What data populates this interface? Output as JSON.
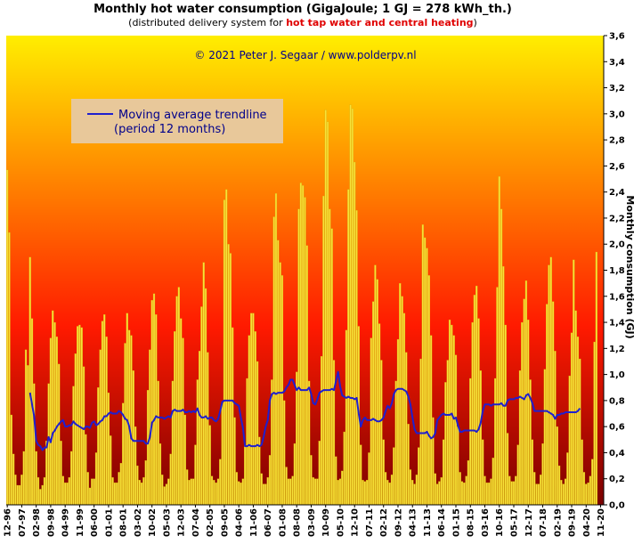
{
  "chart_data": {
    "type": "bar",
    "title": "Monthly hot water consumption (GigaJoule; 1 GJ = 278 kWh_th.)",
    "subtitle_prefix": "(distributed delivery system for ",
    "subtitle_highlight": "hot tap water and central heating",
    "subtitle_suffix": ")",
    "copyright": "© 2021 Peter J. Segaar / www.polderpv.nl",
    "ylabel": "Monthly consumption (GJ)",
    "ylim": [
      0,
      3.6
    ],
    "ytick_step": 0.2,
    "ytick_labels": [
      "0,0",
      "0,2",
      "0,4",
      "0,6",
      "0,8",
      "1,0",
      "1,2",
      "1,4",
      "1,6",
      "1,8",
      "2,0",
      "2,2",
      "2,4",
      "2,6",
      "2,8",
      "3,0",
      "3,2",
      "3,4",
      "3,6"
    ],
    "x_start": "1996-12",
    "x_tick_labels": [
      "12-96",
      "07-97",
      "02-98",
      "09-98",
      "04-99",
      "11-99",
      "06-00",
      "01-01",
      "08-01",
      "03-02",
      "10-02",
      "05-03",
      "12-03",
      "07-04",
      "02-05",
      "09-05",
      "04-06",
      "11-06",
      "06-07",
      "01-08",
      "08-08",
      "03-09",
      "10-09",
      "05-10",
      "12-10",
      "07-11",
      "02-12",
      "09-12",
      "04-13",
      "11-13",
      "06-14",
      "01-15",
      "08-15",
      "03-16",
      "10-16",
      "05-17",
      "12-17",
      "07-18",
      "02-19",
      "09-19",
      "04-20",
      "11-20"
    ],
    "months": 289,
    "legend": {
      "series_label": "Moving average trendline",
      "series_note": "(period 12 months)",
      "position": "top-left"
    },
    "colors": {
      "bars": "#f7e23a",
      "bar_edge": "#d4a800",
      "trendline": "#1f1fcf",
      "legend_bg": "#e8c89a",
      "gradient_top": "#ffee00",
      "gradient_mid": "#ff1a00",
      "gradient_bottom": "#7a0000",
      "title_highlight": "#e00000"
    },
    "series": [
      {
        "name": "Monthly consumption",
        "values": [
          2.57,
          2.09,
          0.69,
          0.39,
          0.23,
          0.15,
          0.15,
          0.23,
          0.41,
          1.19,
          1.07,
          1.9,
          1.43,
          0.93,
          0.41,
          0.21,
          0.12,
          0.15,
          0.21,
          0.49,
          0.93,
          1.28,
          1.49,
          1.4,
          1.29,
          1.08,
          0.49,
          0.22,
          0.17,
          0.17,
          0.21,
          0.41,
          0.91,
          1.16,
          1.37,
          1.38,
          1.36,
          1.06,
          0.54,
          0.25,
          0.13,
          0.2,
          0.2,
          0.4,
          0.9,
          1.19,
          1.41,
          1.46,
          1.29,
          0.86,
          0.53,
          0.21,
          0.17,
          0.17,
          0.25,
          0.32,
          0.78,
          1.24,
          1.47,
          1.34,
          1.3,
          1.03,
          0.6,
          0.3,
          0.19,
          0.17,
          0.21,
          0.34,
          0.88,
          1.19,
          1.57,
          1.62,
          1.46,
          0.95,
          0.47,
          0.23,
          0.14,
          0.16,
          0.2,
          0.39,
          0.95,
          1.33,
          1.6,
          1.67,
          1.43,
          1.28,
          0.69,
          0.27,
          0.19,
          0.2,
          0.2,
          0.46,
          0.96,
          1.18,
          1.52,
          1.86,
          1.66,
          1.17,
          0.61,
          0.22,
          0.19,
          0.17,
          0.2,
          0.35,
          0.79,
          2.34,
          2.42,
          2.0,
          1.93,
          1.36,
          0.67,
          0.25,
          0.18,
          0.17,
          0.2,
          0.46,
          0.97,
          1.3,
          1.47,
          1.47,
          1.33,
          1.1,
          0.52,
          0.24,
          0.16,
          0.16,
          0.21,
          0.38,
          0.96,
          2.21,
          2.39,
          2.03,
          1.86,
          1.76,
          0.8,
          0.29,
          0.2,
          0.2,
          0.22,
          0.47,
          1.02,
          2.27,
          2.47,
          2.45,
          2.36,
          1.99,
          0.95,
          0.38,
          0.21,
          0.2,
          0.2,
          0.49,
          1.14,
          2.37,
          3.03,
          2.94,
          2.27,
          2.12,
          1.11,
          0.37,
          0.19,
          0.2,
          0.26,
          0.56,
          1.34,
          2.42,
          3.07,
          3.04,
          2.63,
          2.26,
          1.37,
          0.46,
          0.19,
          0.18,
          0.19,
          0.4,
          1.28,
          1.56,
          1.84,
          1.73,
          1.39,
          1.11,
          0.5,
          0.25,
          0.19,
          0.17,
          0.23,
          0.44,
          0.95,
          1.27,
          1.7,
          1.6,
          1.47,
          1.17,
          0.62,
          0.27,
          0.19,
          0.16,
          0.23,
          0.44,
          1.12,
          2.15,
          2.05,
          1.97,
          1.76,
          1.3,
          0.67,
          0.24,
          0.16,
          0.18,
          0.21,
          0.5,
          0.94,
          1.11,
          1.42,
          1.38,
          1.3,
          1.15,
          0.6,
          0.25,
          0.18,
          0.17,
          0.22,
          0.34,
          0.97,
          1.4,
          1.61,
          1.68,
          1.43,
          1.03,
          0.5,
          0.22,
          0.17,
          0.17,
          0.2,
          0.36,
          0.97,
          1.67,
          2.52,
          2.27,
          1.83,
          1.38,
          0.55,
          0.22,
          0.18,
          0.18,
          0.22,
          0.46,
          1.03,
          1.4,
          1.58,
          1.72,
          1.42,
          0.96,
          0.5,
          0.25,
          0.16,
          0.16,
          0.23,
          0.47,
          1.04,
          1.54,
          1.84,
          1.9,
          1.56,
          1.18,
          0.6,
          0.3,
          0.19,
          0.16,
          0.2,
          0.4,
          0.99,
          1.32,
          1.88,
          1.49,
          1.29,
          1.12,
          0.5,
          0.25,
          0.16,
          0.17,
          0.22,
          0.35,
          1.25,
          1.94
        ]
      },
      {
        "name": "Moving average trendline",
        "values": [
          null,
          null,
          null,
          null,
          null,
          null,
          null,
          null,
          null,
          null,
          null,
          0.86,
          0.77,
          0.68,
          0.49,
          0.46,
          0.45,
          0.42,
          0.44,
          0.44,
          0.52,
          0.48,
          0.55,
          0.57,
          0.6,
          0.62,
          0.64,
          0.65,
          0.6,
          0.6,
          0.61,
          0.61,
          0.64,
          0.62,
          0.61,
          0.6,
          0.59,
          0.58,
          0.6,
          0.6,
          0.59,
          0.63,
          0.64,
          0.61,
          0.62,
          0.64,
          0.65,
          0.68,
          0.68,
          0.7,
          0.71,
          0.7,
          0.7,
          0.7,
          0.72,
          0.71,
          0.69,
          0.66,
          0.65,
          0.6,
          0.51,
          0.49,
          0.49,
          0.49,
          0.49,
          0.49,
          0.49,
          0.47,
          0.47,
          0.52,
          0.63,
          0.65,
          0.68,
          0.67,
          0.67,
          0.67,
          0.66,
          0.67,
          0.68,
          0.67,
          0.72,
          0.73,
          0.72,
          0.72,
          0.72,
          0.73,
          0.71,
          0.71,
          0.72,
          0.71,
          0.72,
          0.71,
          0.74,
          0.69,
          0.67,
          0.67,
          0.68,
          0.66,
          0.67,
          0.67,
          0.65,
          0.64,
          0.66,
          0.72,
          0.79,
          0.8,
          0.8,
          0.8,
          0.8,
          0.8,
          0.78,
          0.77,
          0.76,
          0.67,
          0.59,
          0.45,
          0.45,
          0.46,
          0.45,
          0.45,
          0.45,
          0.46,
          0.45,
          0.46,
          0.52,
          0.6,
          0.65,
          0.8,
          0.85,
          0.86,
          0.85,
          0.86,
          0.86,
          0.86,
          0.87,
          0.9,
          0.92,
          0.96,
          0.96,
          0.92,
          0.88,
          0.9,
          0.88,
          0.88,
          0.88,
          0.88,
          0.9,
          0.85,
          0.78,
          0.77,
          0.81,
          0.86,
          0.87,
          0.88,
          0.88,
          0.88,
          0.88,
          0.89,
          0.88,
          0.95,
          1.02,
          0.91,
          0.84,
          0.83,
          0.82,
          0.83,
          0.82,
          0.82,
          0.81,
          0.82,
          0.7,
          0.6,
          0.65,
          0.67,
          0.65,
          0.65,
          0.65,
          0.66,
          0.65,
          0.64,
          0.64,
          0.65,
          0.67,
          0.72,
          0.76,
          0.74,
          0.78,
          0.85,
          0.88,
          0.89,
          0.89,
          0.89,
          0.88,
          0.87,
          0.83,
          0.77,
          0.67,
          0.58,
          0.55,
          0.55,
          0.55,
          0.55,
          0.55,
          0.56,
          0.53,
          0.51,
          0.52,
          0.55,
          0.65,
          0.67,
          0.69,
          0.7,
          0.69,
          0.69,
          0.69,
          0.7,
          0.66,
          0.67,
          0.61,
          0.56,
          0.56,
          0.57,
          0.57,
          0.57,
          0.57,
          0.57,
          0.57,
          0.56,
          0.58,
          0.63,
          0.72,
          0.77,
          0.77,
          0.77,
          0.76,
          0.77,
          0.77,
          0.77,
          0.77,
          0.78,
          0.76,
          0.76,
          0.8,
          0.81,
          0.81,
          0.81,
          0.82,
          0.82,
          0.83,
          0.82,
          0.81,
          0.84,
          0.85,
          0.82,
          0.78,
          0.72,
          0.72,
          0.72,
          0.72,
          0.72,
          0.72,
          0.72,
          0.71,
          0.7,
          0.69,
          0.66,
          0.69,
          0.69,
          0.7,
          0.7,
          0.71,
          0.71,
          0.71,
          0.71,
          0.71,
          0.71,
          0.72,
          0.74
        ]
      }
    ]
  }
}
